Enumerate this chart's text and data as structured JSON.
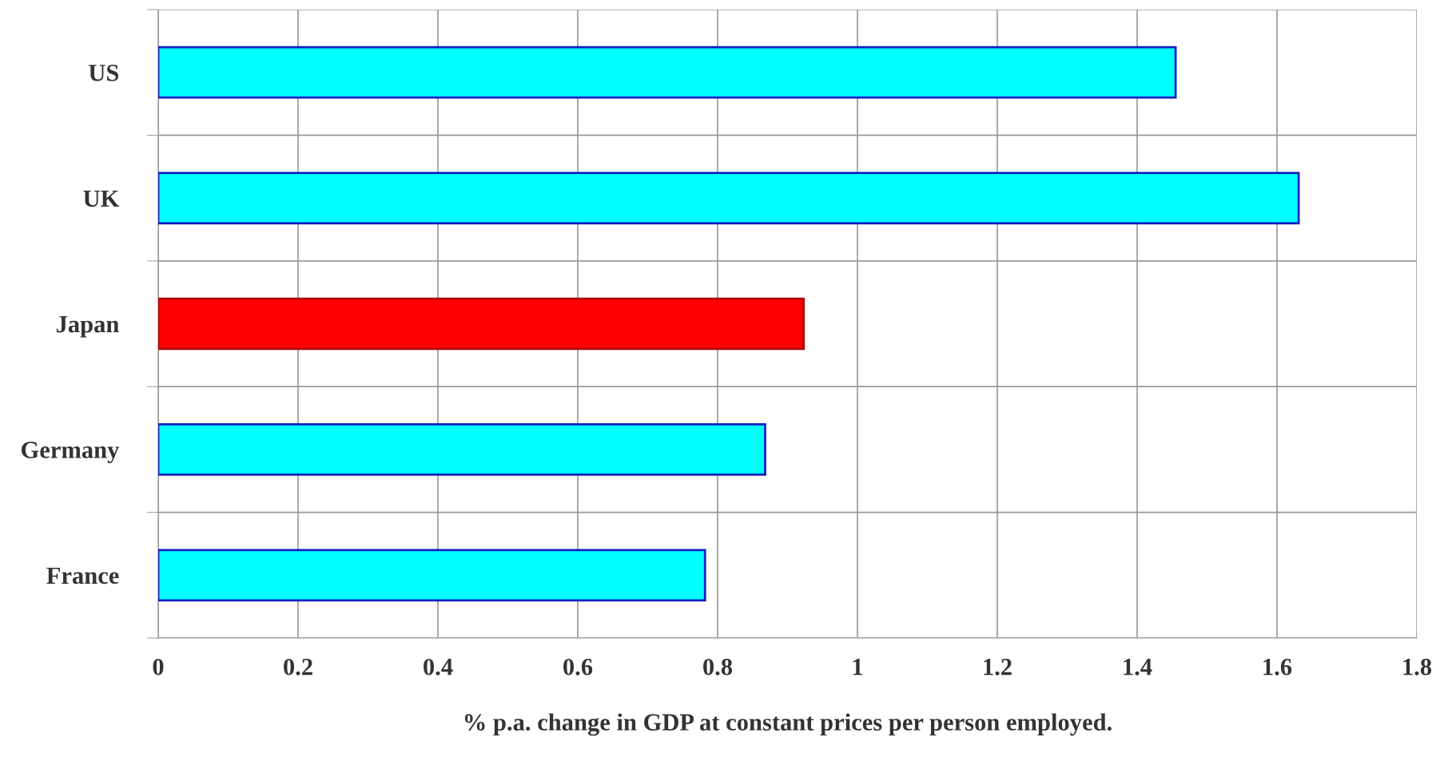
{
  "chart_data": {
    "type": "bar",
    "orientation": "horizontal",
    "xlabel": "% p.a. change in GDP at constant prices per person employed.",
    "categories": [
      "US",
      "UK",
      "Japan",
      "Germany",
      "France"
    ],
    "values": [
      1.455,
      1.631,
      0.923,
      0.868,
      0.782
    ],
    "colors": [
      "#00ffff",
      "#00ffff",
      "#ff0000",
      "#00ffff",
      "#00ffff"
    ],
    "xlim": [
      0,
      1.8
    ],
    "xticks": [
      0,
      0.2,
      0.4,
      0.6,
      0.8,
      1,
      1.2,
      1.4,
      1.6,
      1.8
    ],
    "grid": true
  }
}
